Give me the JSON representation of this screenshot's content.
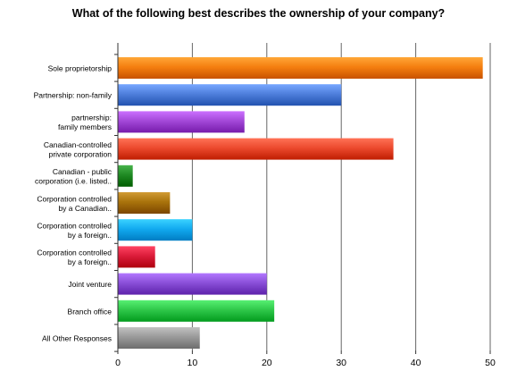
{
  "chart_data": {
    "type": "bar",
    "orientation": "horizontal",
    "title": "What of the following best describes the ownership of your company?",
    "xlim": [
      0,
      50
    ],
    "x_ticks": [
      "0",
      "10",
      "20",
      "30",
      "40",
      "50"
    ],
    "grid": true,
    "legend": "none",
    "categories": [
      [
        "Sole proprietorship"
      ],
      [
        "Partnership: non-family"
      ],
      [
        "partnership:",
        "family members"
      ],
      [
        "Canadian-controlled",
        "private corporation"
      ],
      [
        "Canadian - public",
        "corporation (i.e. listed.."
      ],
      [
        "Corporation controlled",
        "by a Canadian.."
      ],
      [
        "Corporation controlled",
        "by a foreign.."
      ],
      [
        "Corporation controlled",
        "by a foreign.."
      ],
      [
        "Joint venture"
      ],
      [
        "Branch office"
      ],
      [
        "All Other Responses"
      ]
    ],
    "values": [
      49,
      30,
      17,
      37,
      2,
      7,
      10,
      5,
      20,
      21,
      11
    ],
    "colors": [
      "#f57f10",
      "#4f7fdc",
      "#a348d8",
      "#ec4a2e",
      "#1f8a23",
      "#a9730c",
      "#12aaf0",
      "#db1c3a",
      "#8a4fd8",
      "#2fc84a",
      "#9a9a9a"
    ]
  }
}
